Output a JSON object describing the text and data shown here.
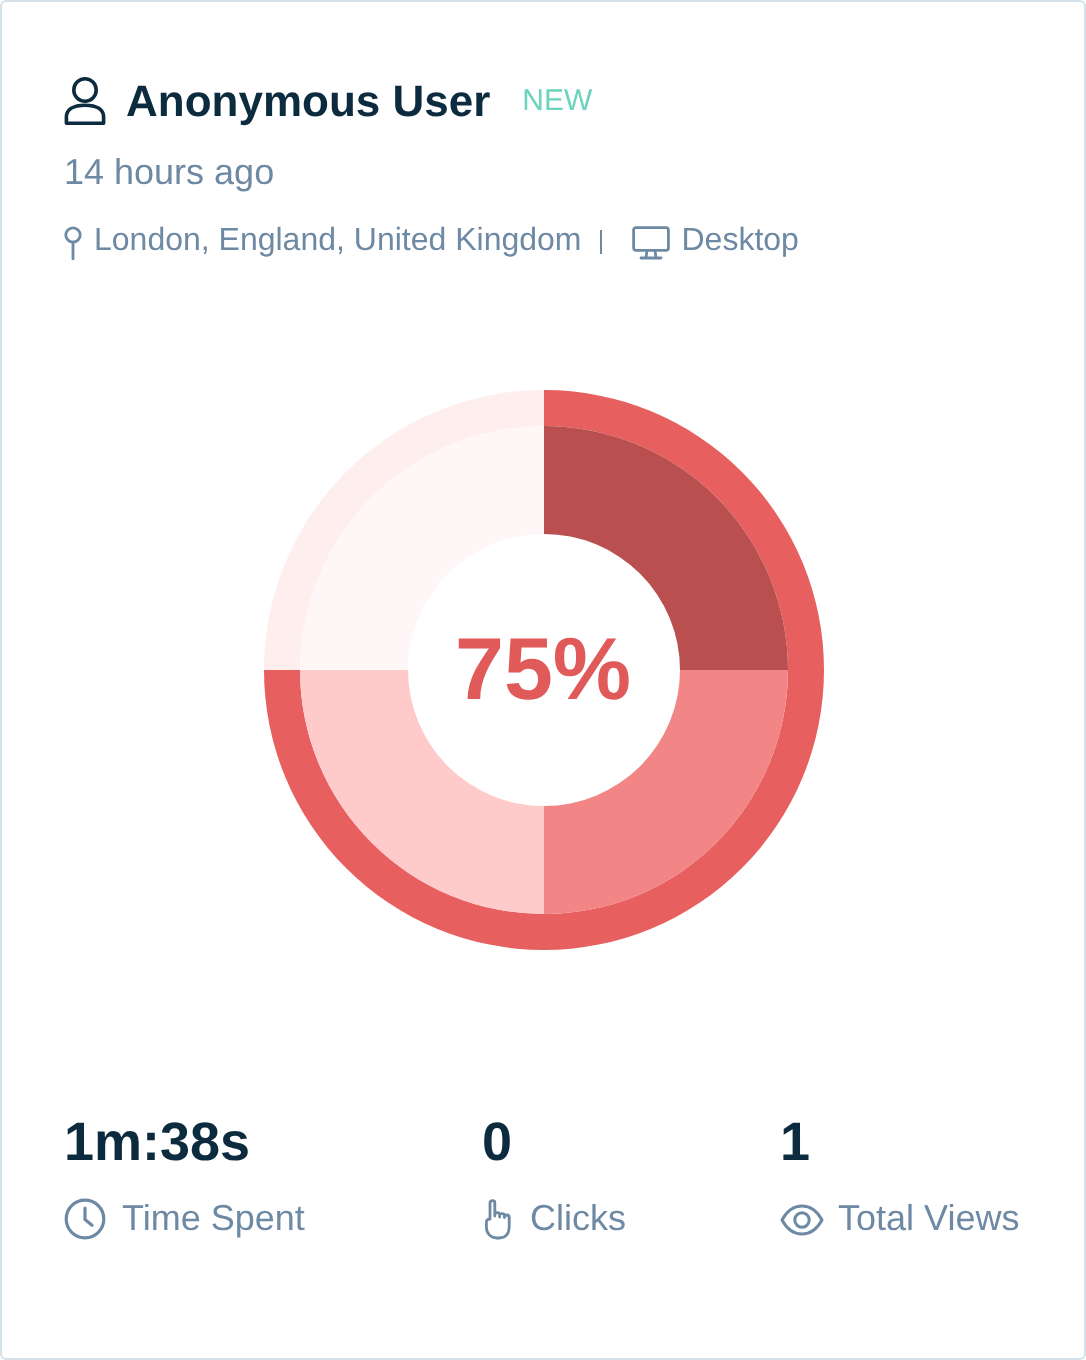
{
  "chart_data": [
    {
      "type": "other",
      "title": "Anonymous User",
      "subtitle": "14 hours ago",
      "annotations": [
        "NEW",
        "London, England, United Kingdom",
        "Desktop"
      ]
    },
    {
      "type": "donut",
      "series": [
        {
          "values": [
            75,
            25
          ],
          "colors": [
            "#e85f5f",
            "#ffeeee"
          ]
        },
        {
          "values": [
            25,
            25,
            25,
            25
          ],
          "colors": [
            "#b94f4f",
            "#f28585",
            "#ffcaca",
            "#fff7f7"
          ]
        }
      ],
      "annotations": [
        "75%"
      ]
    },
    {
      "type": "other",
      "annotations": [
        "1m:38s",
        "Time Spent",
        "0",
        "Clicks",
        "1",
        "Total Views"
      ]
    }
  ]
}
